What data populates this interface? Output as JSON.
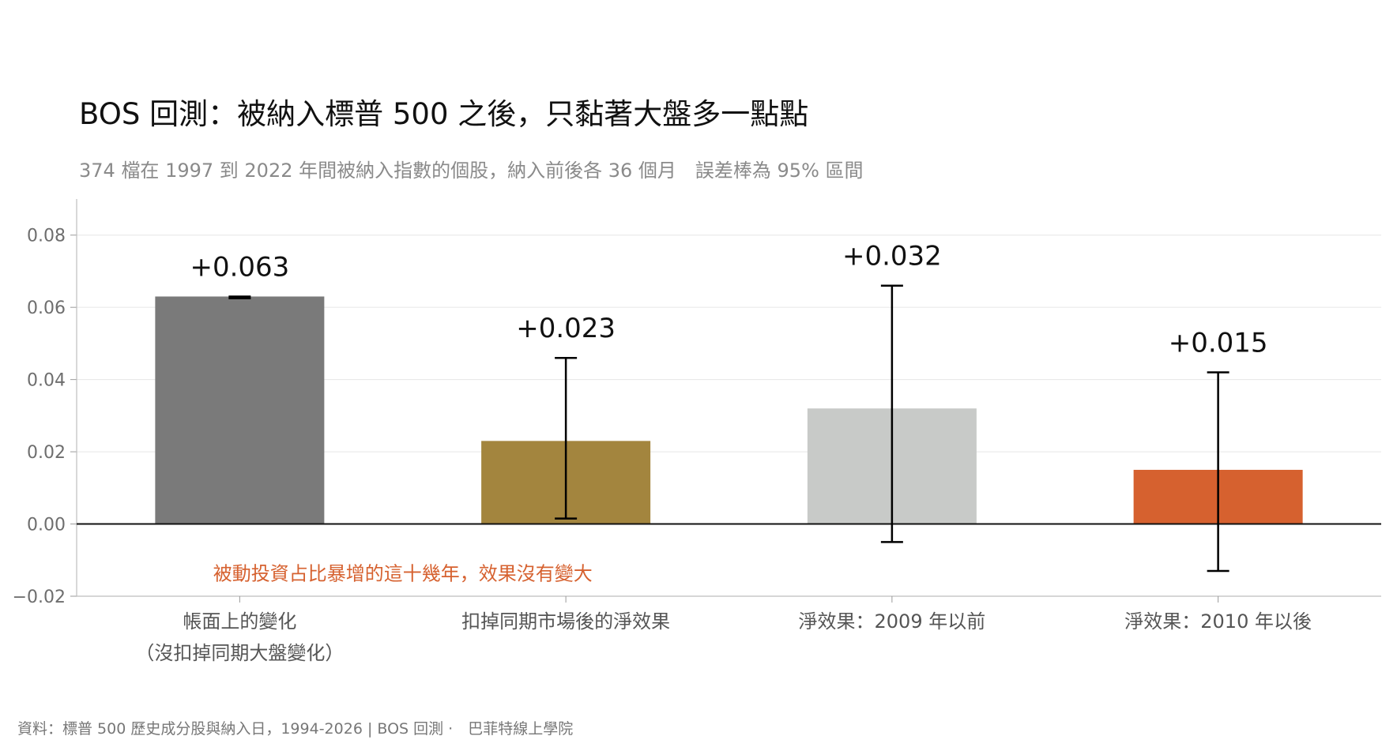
{
  "header": {
    "title": "BOS 回測：被納入標普 500 之後，只黏著大盤多一點點",
    "subtitle": "374 檔在 1997 到 2022 年間被納入指數的個股，納入前後各 36 個月　誤差棒為 95% 區間"
  },
  "footer": {
    "source": "資料：標普 500 歷史成分股與納入日，1994-2026 | BOS 回測 ·　巴菲特線上學院"
  },
  "chart_data": {
    "type": "bar",
    "categories": [
      [
        "帳面上的變化",
        "（沒扣掉同期大盤變化）"
      ],
      [
        "扣掉同期市場後的淨效果"
      ],
      [
        "淨效果：2009 年以前"
      ],
      [
        "淨效果：2010 年以後"
      ]
    ],
    "values": [
      0.063,
      0.023,
      0.032,
      0.015
    ],
    "value_labels": [
      "+0.063",
      "+0.023",
      "+0.032",
      "+0.015"
    ],
    "error_low": [
      0.0625,
      0.0015,
      -0.005,
      -0.013
    ],
    "error_high": [
      0.063,
      0.046,
      0.066,
      0.042
    ],
    "colors": [
      "#7a7a7a",
      "#a3853e",
      "#c8cac8",
      "#d6612f"
    ],
    "ylim": [
      -0.02,
      0.09
    ],
    "yticks": [
      -0.02,
      0.0,
      0.02,
      0.04,
      0.06,
      0.08
    ],
    "ytick_labels": [
      "−0.02",
      "0.00",
      "0.02",
      "0.04",
      "0.06",
      "0.08"
    ],
    "grid": true,
    "annotation": {
      "text": "被動投資占比暴增的這十幾年，效果沒有變大",
      "color": "#d6612f",
      "x_category_index": 0.5,
      "y": -0.0135
    }
  }
}
